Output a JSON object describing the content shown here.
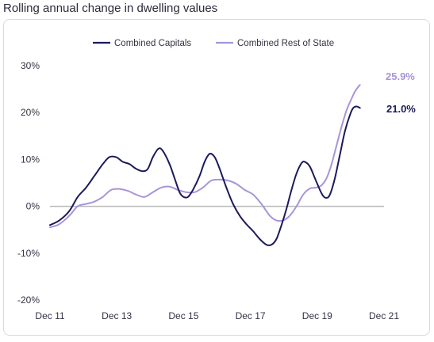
{
  "title": "Rolling annual change in dwelling values",
  "colors": {
    "capitals": "#1b1a5c",
    "rest_of_state": "#a894d9",
    "zero_line": "#b8b8b8"
  },
  "chart_data": {
    "type": "line",
    "title": "Rolling annual change in dwelling values",
    "xlabel": "",
    "ylabel": "",
    "ylim": [
      -20,
      30
    ],
    "yticks": [
      "30%",
      "20%",
      "10%",
      "0%",
      "-10%",
      "-20%"
    ],
    "xticks": [
      "Dec 11",
      "Dec 13",
      "Dec 15",
      "Dec 17",
      "Dec 19",
      "Dec 21"
    ],
    "grid": false,
    "legend": "top-center",
    "series": [
      {
        "name": "Combined Capitals",
        "end_label": "21.0%",
        "points": [
          [
            2011.92,
            -4.0
          ],
          [
            2012.2,
            -3.0
          ],
          [
            2012.5,
            -1.0
          ],
          [
            2012.75,
            2.0
          ],
          [
            2013.0,
            4.0
          ],
          [
            2013.25,
            6.5
          ],
          [
            2013.5,
            9.0
          ],
          [
            2013.7,
            10.5
          ],
          [
            2013.9,
            10.5
          ],
          [
            2014.1,
            9.5
          ],
          [
            2014.3,
            9.0
          ],
          [
            2014.5,
            8.0
          ],
          [
            2014.7,
            7.5
          ],
          [
            2014.85,
            8.0
          ],
          [
            2015.0,
            10.5
          ],
          [
            2015.17,
            12.3
          ],
          [
            2015.3,
            11.8
          ],
          [
            2015.5,
            9.0
          ],
          [
            2015.65,
            6.0
          ],
          [
            2015.8,
            3.0
          ],
          [
            2015.92,
            2.0
          ],
          [
            2016.05,
            2.0
          ],
          [
            2016.2,
            3.5
          ],
          [
            2016.4,
            6.5
          ],
          [
            2016.55,
            9.5
          ],
          [
            2016.7,
            11.2
          ],
          [
            2016.85,
            10.5
          ],
          [
            2017.0,
            8.0
          ],
          [
            2017.2,
            4.0
          ],
          [
            2017.4,
            0.5
          ],
          [
            2017.6,
            -2.0
          ],
          [
            2017.8,
            -3.8
          ],
          [
            2018.0,
            -5.3
          ],
          [
            2018.2,
            -7.0
          ],
          [
            2018.4,
            -8.2
          ],
          [
            2018.55,
            -8.2
          ],
          [
            2018.7,
            -7.0
          ],
          [
            2018.85,
            -4.0
          ],
          [
            2019.0,
            -0.5
          ],
          [
            2019.15,
            3.5
          ],
          [
            2019.3,
            7.0
          ],
          [
            2019.45,
            9.2
          ],
          [
            2019.55,
            9.5
          ],
          [
            2019.7,
            8.5
          ],
          [
            2019.85,
            6.0
          ],
          [
            2020.0,
            3.5
          ],
          [
            2020.1,
            2.2
          ],
          [
            2020.2,
            1.8
          ],
          [
            2020.3,
            2.5
          ],
          [
            2020.45,
            6.0
          ],
          [
            2020.6,
            11.0
          ],
          [
            2020.75,
            16.0
          ],
          [
            2020.9,
            19.5
          ],
          [
            2021.0,
            21.0
          ],
          [
            2021.1,
            21.3
          ],
          [
            2021.2,
            21.0
          ]
        ]
      },
      {
        "name": "Combined Rest of State",
        "end_label": "25.9%",
        "points": [
          [
            2011.92,
            -4.5
          ],
          [
            2012.2,
            -3.8
          ],
          [
            2012.5,
            -2.0
          ],
          [
            2012.75,
            0.0
          ],
          [
            2013.0,
            0.5
          ],
          [
            2013.25,
            1.0
          ],
          [
            2013.5,
            2.0
          ],
          [
            2013.75,
            3.5
          ],
          [
            2014.0,
            3.7
          ],
          [
            2014.25,
            3.3
          ],
          [
            2014.5,
            2.5
          ],
          [
            2014.75,
            2.0
          ],
          [
            2015.0,
            3.0
          ],
          [
            2015.25,
            4.0
          ],
          [
            2015.5,
            4.2
          ],
          [
            2015.75,
            3.5
          ],
          [
            2016.0,
            3.0
          ],
          [
            2016.25,
            3.0
          ],
          [
            2016.5,
            4.0
          ],
          [
            2016.75,
            5.5
          ],
          [
            2017.0,
            5.7
          ],
          [
            2017.25,
            5.5
          ],
          [
            2017.5,
            4.8
          ],
          [
            2017.75,
            3.5
          ],
          [
            2018.0,
            2.5
          ],
          [
            2018.25,
            0.5
          ],
          [
            2018.5,
            -2.0
          ],
          [
            2018.7,
            -3.0
          ],
          [
            2018.9,
            -3.0
          ],
          [
            2019.1,
            -2.0
          ],
          [
            2019.3,
            0.0
          ],
          [
            2019.5,
            2.5
          ],
          [
            2019.7,
            3.8
          ],
          [
            2019.9,
            4.0
          ],
          [
            2020.05,
            4.5
          ],
          [
            2020.2,
            6.0
          ],
          [
            2020.35,
            9.0
          ],
          [
            2020.5,
            13.0
          ],
          [
            2020.65,
            17.0
          ],
          [
            2020.8,
            20.5
          ],
          [
            2020.95,
            23.0
          ],
          [
            2021.05,
            24.5
          ],
          [
            2021.15,
            25.5
          ],
          [
            2021.2,
            25.9
          ]
        ]
      }
    ]
  }
}
